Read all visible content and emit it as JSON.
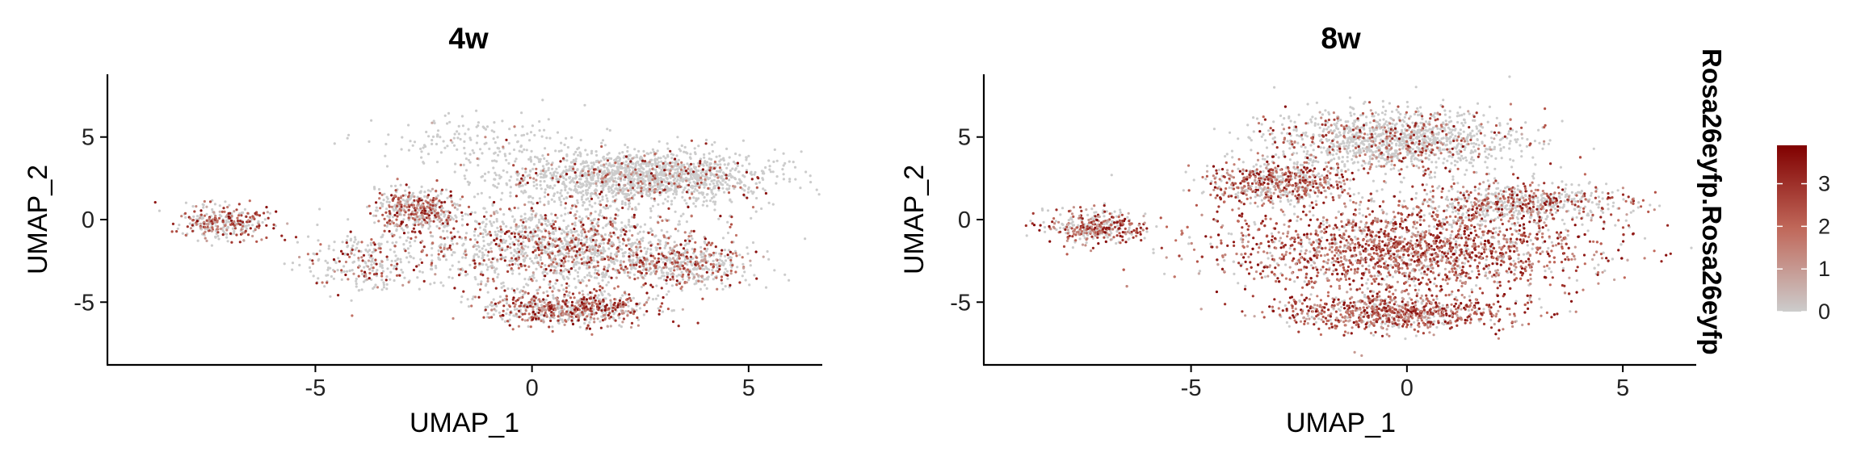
{
  "chart_data": [
    {
      "type": "scatter",
      "panel": "4w",
      "title": "4w",
      "xlabel": "UMAP_1",
      "ylabel": "UMAP_2",
      "xlim": [
        -9.8,
        6.7
      ],
      "ylim": [
        -8.8,
        8.8
      ],
      "xticks": [
        -5,
        0,
        5
      ],
      "yticks": [
        -5,
        0,
        5
      ],
      "color_variable": "Rosa26eyfp.Rosa26eyfp",
      "series": [
        {
          "clusters": [
            {
              "cx": 2.5,
              "cy": 2.6,
              "rx": 3.0,
              "ry": 1.6,
              "n": 1600,
              "expr": 0.1
            },
            {
              "cx": -1.2,
              "cy": 4.6,
              "rx": 2.4,
              "ry": 1.6,
              "n": 160,
              "expr": 0.05
            },
            {
              "cx": -2.6,
              "cy": 0.6,
              "rx": 1.0,
              "ry": 1.3,
              "n": 420,
              "expr": 0.55
            },
            {
              "cx": -7.2,
              "cy": -0.2,
              "rx": 1.1,
              "ry": 1.0,
              "n": 320,
              "expr": 0.5
            },
            {
              "cx": 0.6,
              "cy": -1.6,
              "rx": 3.2,
              "ry": 2.6,
              "n": 1500,
              "expr": 0.3
            },
            {
              "cx": 0.8,
              "cy": -5.4,
              "rx": 1.9,
              "ry": 1.0,
              "n": 700,
              "expr": 0.55
            },
            {
              "cx": 3.5,
              "cy": -2.8,
              "rx": 1.6,
              "ry": 1.3,
              "n": 420,
              "expr": 0.4
            },
            {
              "cx": -3.9,
              "cy": -2.5,
              "rx": 1.5,
              "ry": 2.0,
              "n": 260,
              "expr": 0.3
            }
          ]
        }
      ]
    },
    {
      "type": "scatter",
      "panel": "8w",
      "title": "8w",
      "xlabel": "UMAP_1",
      "ylabel": "UMAP_2",
      "xlim": [
        -9.8,
        6.7
      ],
      "ylim": [
        -8.8,
        8.8
      ],
      "xticks": [
        -5,
        0,
        5
      ],
      "yticks": [
        -5,
        0,
        5
      ],
      "color_variable": "Rosa26eyfp.Rosa26eyfp",
      "series": [
        {
          "clusters": [
            {
              "cx": -0.3,
              "cy": 4.8,
              "rx": 2.8,
              "ry": 1.8,
              "n": 1300,
              "expr": 0.2
            },
            {
              "cx": -3.0,
              "cy": 2.2,
              "rx": 1.6,
              "ry": 1.3,
              "n": 600,
              "expr": 0.6
            },
            {
              "cx": -7.2,
              "cy": -0.4,
              "rx": 1.2,
              "ry": 1.0,
              "n": 380,
              "expr": 0.6
            },
            {
              "cx": 0.0,
              "cy": -1.8,
              "rx": 4.2,
              "ry": 2.6,
              "n": 2600,
              "expr": 0.8
            },
            {
              "cx": -0.3,
              "cy": -5.6,
              "rx": 2.6,
              "ry": 1.1,
              "n": 800,
              "expr": 0.8
            },
            {
              "cx": 2.5,
              "cy": 1.0,
              "rx": 2.6,
              "ry": 1.3,
              "n": 700,
              "expr": 0.4
            }
          ]
        }
      ]
    }
  ],
  "legend": {
    "title": "Rosa26eyfp.Rosa26eyfp",
    "ticks": [
      0,
      1,
      2,
      3
    ],
    "range": [
      0,
      3.9
    ],
    "colors": {
      "low": "#cccccc",
      "mid": "#c0685a",
      "high": "#800000"
    },
    "placement": "right"
  }
}
